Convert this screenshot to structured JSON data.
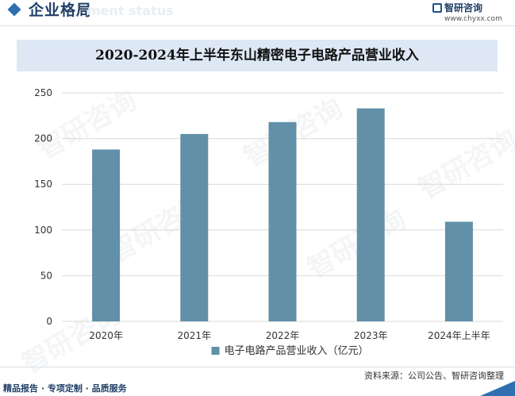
{
  "header": {
    "section_title": "企业格局",
    "section_subtitle": "ment status",
    "brand_name": "智研咨询",
    "brand_url": "www.chyxx.com"
  },
  "watermark": "智研咨询",
  "chart_data": {
    "type": "bar",
    "title": "2020-2024年上半年东山精密电子电路产品营业收入",
    "categories": [
      "2020年",
      "2021年",
      "2022年",
      "2023年",
      "2024年上半年"
    ],
    "series": [
      {
        "name": "电子电路产品营业收入（亿元）",
        "values": [
          188,
          205,
          218,
          233,
          109
        ],
        "color": "#6190a8"
      }
    ],
    "ylim": [
      0,
      250
    ],
    "yticks": [
      0,
      50,
      100,
      150,
      200,
      250
    ],
    "grid": true,
    "legend": "bottom-center",
    "xlabel": "",
    "ylabel": ""
  },
  "footer": {
    "source": "资料来源：公司公告、智研咨询整理",
    "tagline": "精品报告 · 专项定制 · 品质服务"
  }
}
